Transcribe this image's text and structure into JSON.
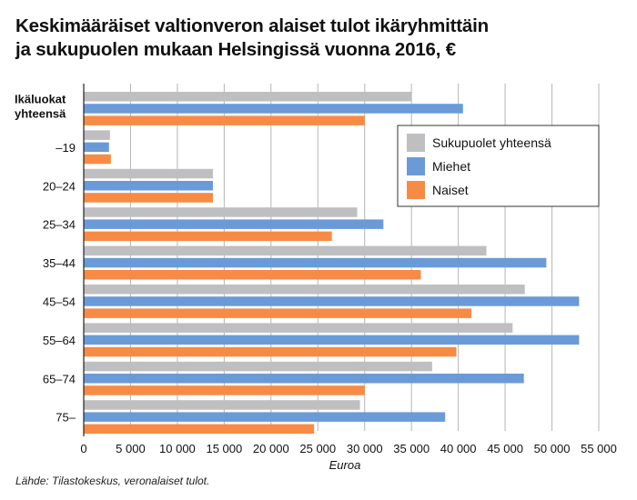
{
  "title_line1": "Keskimääräiset valtionveron alaiset tulot ikäryhmittäin",
  "title_line2": "ja sukupuolen mukaan Helsingissä vuonna 2016, €",
  "source": "Lähde: Tilastokeskus, veronalaiset tulot.",
  "colors": {
    "total": "#BFBFC1",
    "men": "#6A9BD8",
    "women": "#F78B45"
  },
  "chart_data": {
    "type": "bar",
    "orientation": "horizontal",
    "categories": [
      "Ikäluokat yhteensä",
      "–19",
      "20–24",
      "25–34",
      "35–44",
      "45–54",
      "55–64",
      "65–74",
      "75–"
    ],
    "series": [
      {
        "name": "Sukupuolet yhteensä",
        "color": "#BFBFC1",
        "values": [
          35000,
          2800,
          13800,
          29200,
          43000,
          47100,
          45800,
          37200,
          29500
        ]
      },
      {
        "name": "Miehet",
        "color": "#6A9BD8",
        "values": [
          40500,
          2700,
          13800,
          32000,
          49400,
          52900,
          52900,
          47000,
          38600
        ]
      },
      {
        "name": "Naiset",
        "color": "#F78B45",
        "values": [
          30000,
          2900,
          13800,
          26500,
          36000,
          41400,
          39800,
          30000,
          24600
        ]
      }
    ],
    "xlabel": "Euroa",
    "xlim": [
      0,
      55000
    ],
    "xticks": [
      0,
      5000,
      10000,
      15000,
      20000,
      25000,
      30000,
      35000,
      40000,
      45000,
      50000,
      55000
    ],
    "xtick_labels": [
      "0",
      "5 000",
      "10 000",
      "15 000",
      "20 000",
      "25 000",
      "30 000",
      "35 000",
      "40 000",
      "45 000",
      "50 000",
      "55 000"
    ],
    "grid": true,
    "legend": "top-right"
  }
}
